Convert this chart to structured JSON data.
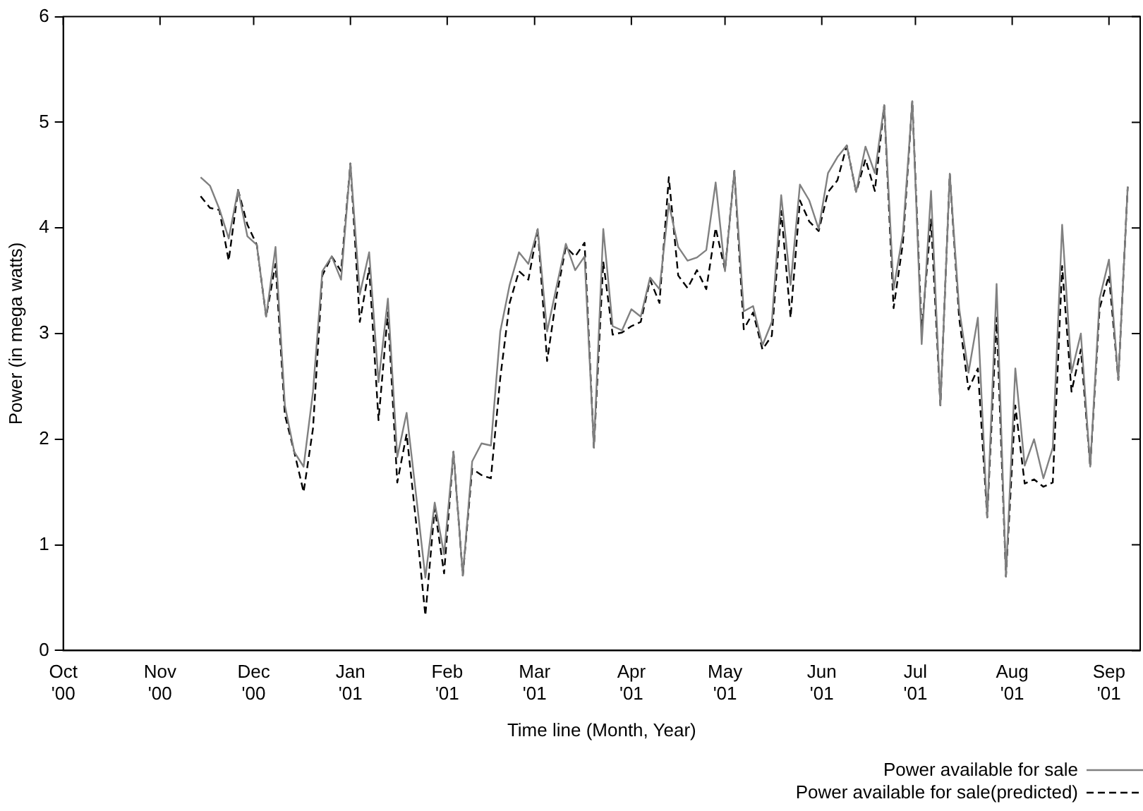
{
  "chart_data": {
    "type": "line",
    "xlabel": "Time line (Month, Year)",
    "ylabel": "Power (in mega watts)",
    "x": [
      "2000-11-14",
      "2000-11-17",
      "2000-11-20",
      "2000-11-23",
      "2000-11-26",
      "2000-11-29",
      "2000-12-02",
      "2000-12-05",
      "2000-12-08",
      "2000-12-11",
      "2000-12-14",
      "2000-12-17",
      "2000-12-20",
      "2000-12-23",
      "2000-12-26",
      "2000-12-29",
      "2001-01-01",
      "2001-01-04",
      "2001-01-07",
      "2001-01-10",
      "2001-01-13",
      "2001-01-16",
      "2001-01-19",
      "2001-01-22",
      "2001-01-25",
      "2001-01-28",
      "2001-01-31",
      "2001-02-03",
      "2001-02-06",
      "2001-02-09",
      "2001-02-12",
      "2001-02-15",
      "2001-02-18",
      "2001-02-21",
      "2001-02-24",
      "2001-02-27",
      "2001-03-02",
      "2001-03-05",
      "2001-03-08",
      "2001-03-11",
      "2001-03-14",
      "2001-03-17",
      "2001-03-20",
      "2001-03-23",
      "2001-03-26",
      "2001-03-29",
      "2001-04-01",
      "2001-04-04",
      "2001-04-07",
      "2001-04-10",
      "2001-04-13",
      "2001-04-16",
      "2001-04-19",
      "2001-04-22",
      "2001-04-25",
      "2001-04-28",
      "2001-05-01",
      "2001-05-04",
      "2001-05-07",
      "2001-05-10",
      "2001-05-13",
      "2001-05-16",
      "2001-05-19",
      "2001-05-22",
      "2001-05-25",
      "2001-05-28",
      "2001-05-31",
      "2001-06-03",
      "2001-06-06",
      "2001-06-09",
      "2001-06-12",
      "2001-06-15",
      "2001-06-18",
      "2001-06-21",
      "2001-06-24",
      "2001-06-27",
      "2001-06-30",
      "2001-07-03",
      "2001-07-06",
      "2001-07-09",
      "2001-07-12",
      "2001-07-15",
      "2001-07-18",
      "2001-07-21",
      "2001-07-24",
      "2001-07-27",
      "2001-07-30",
      "2001-08-02",
      "2001-08-05",
      "2001-08-08",
      "2001-08-11",
      "2001-08-14",
      "2001-08-17",
      "2001-08-20",
      "2001-08-23",
      "2001-08-26",
      "2001-08-29",
      "2001-09-01",
      "2001-09-04",
      "2001-09-07"
    ],
    "series": [
      {
        "name": "Power available for sale",
        "color": "#808080",
        "line_style": "solid",
        "values": [
          4.48,
          4.4,
          4.18,
          3.9,
          4.36,
          3.92,
          3.84,
          3.16,
          3.82,
          2.32,
          1.88,
          1.74,
          2.45,
          3.59,
          3.73,
          3.51,
          4.61,
          3.37,
          3.77,
          2.54,
          3.33,
          1.83,
          2.25,
          1.48,
          0.69,
          1.4,
          0.91,
          1.88,
          0.71,
          1.79,
          1.96,
          1.94,
          3.02,
          3.46,
          3.77,
          3.66,
          3.99,
          3.02,
          3.44,
          3.85,
          3.6,
          3.73,
          1.92,
          3.99,
          3.07,
          3.03,
          3.23,
          3.16,
          3.53,
          3.42,
          4.23,
          3.82,
          3.69,
          3.72,
          3.79,
          4.43,
          3.59,
          4.54,
          3.21,
          3.26,
          2.89,
          3.11,
          4.31,
          3.46,
          4.41,
          4.26,
          3.99,
          4.52,
          4.67,
          4.78,
          4.34,
          4.77,
          4.52,
          5.16,
          3.42,
          3.95,
          5.2,
          2.9,
          4.35,
          2.32,
          4.51,
          3.24,
          2.63,
          3.15,
          1.26,
          3.47,
          0.7,
          2.67,
          1.75,
          2.0,
          1.63,
          1.92,
          4.03,
          2.63,
          3.0,
          1.74,
          3.33,
          3.7,
          2.56,
          4.39
        ]
      },
      {
        "name": "Power available for sale(predicted)",
        "color": "#000000",
        "line_style": "dashed",
        "values": [
          4.3,
          4.19,
          4.17,
          3.69,
          4.36,
          4.03,
          3.84,
          3.16,
          3.66,
          2.23,
          1.88,
          1.5,
          2.1,
          3.55,
          3.73,
          3.59,
          4.61,
          3.11,
          3.62,
          2.18,
          3.2,
          1.59,
          2.05,
          1.22,
          0.33,
          1.35,
          0.73,
          1.88,
          0.71,
          1.72,
          1.66,
          1.63,
          2.58,
          3.29,
          3.59,
          3.51,
          3.99,
          2.74,
          3.35,
          3.82,
          3.73,
          3.86,
          1.92,
          3.68,
          2.99,
          3.01,
          3.07,
          3.11,
          3.51,
          3.29,
          4.48,
          3.55,
          3.43,
          3.6,
          3.42,
          4.0,
          3.6,
          4.54,
          3.04,
          3.2,
          2.85,
          2.98,
          4.16,
          3.15,
          4.26,
          4.06,
          3.97,
          4.34,
          4.45,
          4.78,
          4.34,
          4.65,
          4.35,
          5.16,
          3.24,
          3.86,
          5.2,
          3.02,
          4.08,
          2.32,
          4.51,
          3.15,
          2.47,
          2.67,
          1.26,
          3.15,
          0.7,
          2.32,
          1.58,
          1.62,
          1.55,
          1.59,
          3.64,
          2.45,
          2.85,
          1.74,
          3.24,
          3.55,
          2.56,
          4.39
        ]
      }
    ],
    "xlim": [
      "2000-10-01",
      "2001-09-11"
    ],
    "xticks": [
      {
        "value": "2000-10-01",
        "label": "Oct '00"
      },
      {
        "value": "2000-11-01",
        "label": "Nov '00"
      },
      {
        "value": "2000-12-01",
        "label": "Dec '00"
      },
      {
        "value": "2001-01-01",
        "label": "Jan '01"
      },
      {
        "value": "2001-02-01",
        "label": "Feb '01"
      },
      {
        "value": "2001-03-01",
        "label": "Mar '01"
      },
      {
        "value": "2001-04-01",
        "label": "Apr '01"
      },
      {
        "value": "2001-05-01",
        "label": "May '01"
      },
      {
        "value": "2001-06-01",
        "label": "Jun '01"
      },
      {
        "value": "2001-07-01",
        "label": "Jul '01"
      },
      {
        "value": "2001-08-01",
        "label": "Aug '01"
      },
      {
        "value": "2001-09-01",
        "label": "Sep '01"
      }
    ],
    "ylim": [
      0,
      6
    ],
    "yticks": [
      0,
      1,
      2,
      3,
      4,
      5,
      6
    ],
    "grid": false,
    "legend": "bottom right",
    "marker": "none"
  }
}
